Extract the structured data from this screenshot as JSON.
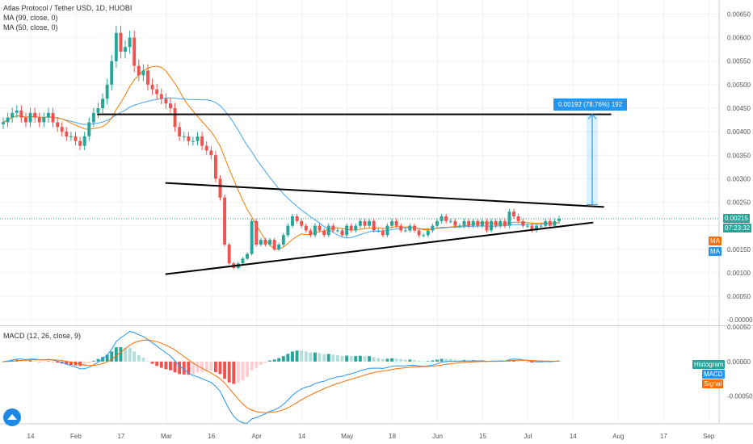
{
  "header": {
    "title": "Atlas Protocol / Tether USD, 1D, HUOBI",
    "ma99_label": "MA (99, close, 0)",
    "ma50_label": "MA (50, close, 0)"
  },
  "macd_panel": {
    "label": "MACD (12, 26, close, 9)",
    "tags": [
      "Histogram",
      "MACD",
      "Signal"
    ]
  },
  "price_tags": {
    "last_price": "0.00215",
    "countdown": "07:23:32",
    "ma_a": "MA",
    "ma_b": "MA"
  },
  "annotation": {
    "measure_label": "0.00192 (78.76%) 192"
  },
  "colors": {
    "up": "#26a69a",
    "down": "#ef5350",
    "ma50": "#f57c00",
    "ma99": "#42a5f5",
    "macd": "#2196f3",
    "signal": "#ff6d00",
    "hist_up": "#26a69a",
    "hist_down": "#ef5350",
    "measure": "#2196f3"
  },
  "chart_data": [
    {
      "type": "candlestick",
      "title": "Atlas Protocol / Tether USD, 1D, HUOBI",
      "x_tick_labels": [
        "14",
        "Feb",
        "17",
        "Mar",
        "16",
        "Apr",
        "14",
        "May",
        "18",
        "Jun",
        "15",
        "Jul",
        "14",
        "Aug",
        "17",
        "Sep"
      ],
      "y_tick_labels": [
        "0.00650",
        "0.00600",
        "0.00550",
        "0.00500",
        "0.00450",
        "0.00400",
        "0.00350",
        "0.00300",
        "0.00250",
        "0.00200",
        "0.00150",
        "0.00100",
        "0.00050",
        "-0.00000"
      ],
      "ylim": [
        -0.0001,
        0.0068
      ],
      "last_price": 0.00215,
      "close_series": [
        0.0042,
        0.0043,
        0.0044,
        0.00445,
        0.0043,
        0.0042,
        0.0044,
        0.0043,
        0.0042,
        0.0043,
        0.0044,
        0.0042,
        0.0041,
        0.004,
        0.0039,
        0.0039,
        0.0038,
        0.0037,
        0.0039,
        0.0042,
        0.0044,
        0.0045,
        0.0047,
        0.005,
        0.0055,
        0.0061,
        0.0057,
        0.0058,
        0.006,
        0.0054,
        0.0052,
        0.0053,
        0.005,
        0.0049,
        0.0048,
        0.0047,
        0.0046,
        0.0045,
        0.0041,
        0.0039,
        0.0039,
        0.0038,
        0.0038,
        0.0039,
        0.0037,
        0.0036,
        0.0035,
        0.003,
        0.0026,
        0.0016,
        0.0012,
        0.0011,
        0.0012,
        0.0013,
        0.0014,
        0.0021,
        0.0016,
        0.0017,
        0.0016,
        0.0017,
        0.0015,
        0.0016,
        0.0018,
        0.002,
        0.0022,
        0.0021,
        0.002,
        0.0019,
        0.0018,
        0.002,
        0.0019,
        0.0018,
        0.002,
        0.0019,
        0.0019,
        0.0018,
        0.002,
        0.0019,
        0.002,
        0.0021,
        0.002,
        0.0021,
        0.0019,
        0.0019,
        0.0018,
        0.002,
        0.0021,
        0.002,
        0.0019,
        0.0019,
        0.002,
        0.0019,
        0.0018,
        0.0018,
        0.0019,
        0.002,
        0.0021,
        0.0022,
        0.0021,
        0.0021,
        0.002,
        0.002,
        0.0021,
        0.002,
        0.0021,
        0.002,
        0.0021,
        0.0019,
        0.0021,
        0.002,
        0.0021,
        0.002,
        0.0023,
        0.0022,
        0.0021,
        0.002,
        0.002,
        0.0019,
        0.002,
        0.002,
        0.0021,
        0.002,
        0.0021,
        0.00215
      ],
      "trendlines": [
        {
          "name": "resistance-horizontal",
          "points": [
            [
              0.135,
              0.00437
            ],
            [
              0.85,
              0.00437
            ]
          ]
        },
        {
          "name": "triangle-upper",
          "points": [
            [
              0.23,
              0.00291
            ],
            [
              0.84,
              0.0024
            ]
          ]
        },
        {
          "name": "triangle-lower",
          "points": [
            [
              0.23,
              0.00097
            ],
            [
              0.825,
              0.00207
            ]
          ]
        }
      ],
      "measure_annotation": {
        "from": 0.00245,
        "to": 0.00437,
        "label": "0.00192 (78.76%) 192"
      }
    },
    {
      "type": "macd",
      "title": "MACD (12, 26, close, 9)",
      "y_tick_labels": [
        "0.00050",
        "0.00000",
        "-0.00050"
      ],
      "ylim": [
        -0.0009,
        0.0005
      ],
      "series": [
        {
          "name": "MACD"
        },
        {
          "name": "Signal"
        },
        {
          "name": "Histogram"
        }
      ]
    }
  ]
}
